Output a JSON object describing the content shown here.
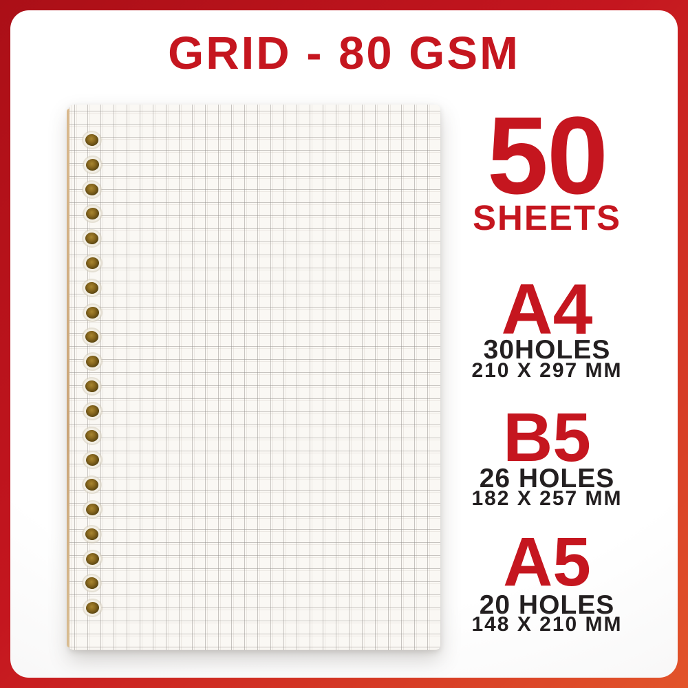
{
  "title": "GRID - 80 GSM",
  "sheets": {
    "count": "50",
    "label": "SHEETS"
  },
  "sizes": [
    {
      "name": "A4",
      "holes": "30HOLES",
      "dimensions": "210 X 297 MM"
    },
    {
      "name": "B5",
      "holes": "26 HOLES",
      "dimensions": "182 X 257 MM"
    },
    {
      "name": "A5",
      "holes": "20 HOLES",
      "dimensions": "148 X 210 MM"
    }
  ],
  "paper": {
    "style": "grid",
    "punch_holes_visible": 20
  },
  "colors": {
    "accent_red": "#c5161f",
    "text_black": "#231f20",
    "frame_gradient_start": "#ab0f17",
    "frame_gradient_mid": "#c4161f",
    "frame_gradient_end": "#e2542a",
    "hole_brown": "#6f5518",
    "paper_background": "#faf8f4"
  }
}
